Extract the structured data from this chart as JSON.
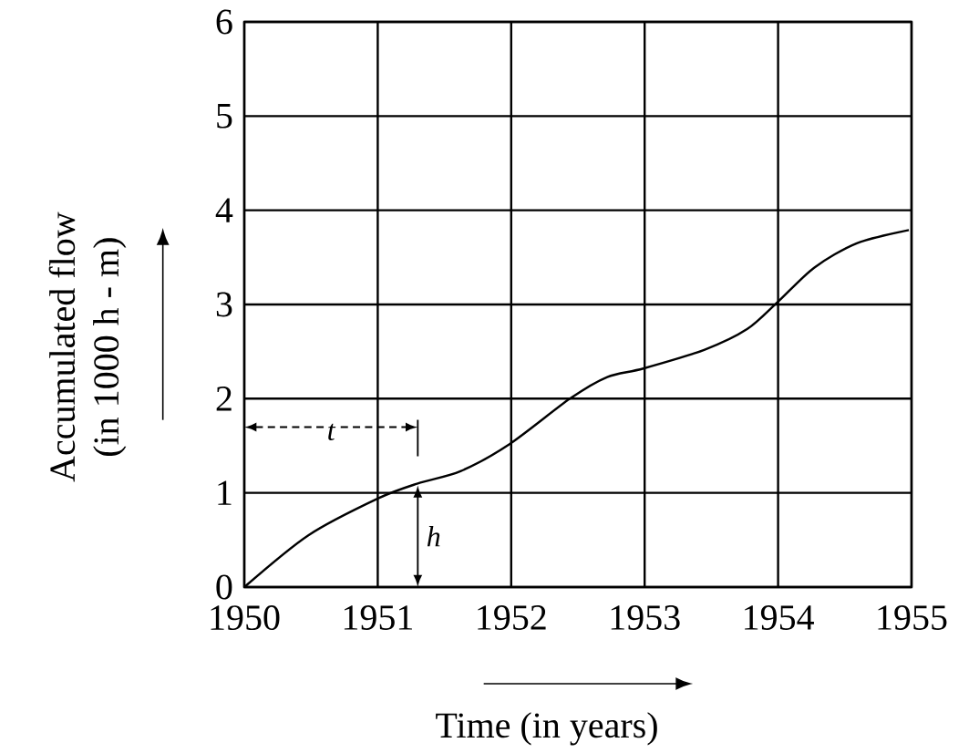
{
  "chart_data": {
    "type": "line",
    "xlabel": "Time (in years)",
    "ylabel": "Accumulated flow\n(in 1000 h - m)",
    "x": [
      1950,
      1950.48,
      1951.0,
      1951.3,
      1951.62,
      1951.99,
      1952.44,
      1952.72,
      1952.99,
      1953.45,
      1953.77,
      1954.0,
      1954.27,
      1954.59,
      1954.98
    ],
    "series": [
      {
        "color": "#000000",
        "values": [
          0,
          0.55,
          0.94,
          1.1,
          1.23,
          1.52,
          2.0,
          2.23,
          2.32,
          2.52,
          2.74,
          3.03,
          3.39,
          3.65,
          3.79
        ]
      }
    ],
    "xlim": [
      1950,
      1955
    ],
    "ylim": [
      0,
      6
    ],
    "xticks": [
      1950,
      1951,
      1952,
      1953,
      1954,
      1955
    ],
    "yticks": [
      0,
      1,
      2,
      3,
      4,
      5,
      6
    ],
    "grid": true,
    "marker": "none",
    "line_style": "solid",
    "annotations": [
      "t",
      "h"
    ]
  }
}
